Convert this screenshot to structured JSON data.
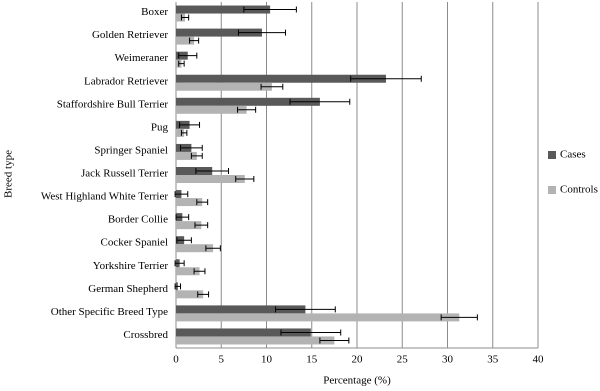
{
  "chart_data": {
    "type": "hbar",
    "x_label": "Percentage (%)",
    "y_label": "Breed type",
    "categories": [
      "Boxer",
      "Golden Retriever",
      "Weimeraner",
      "Labrador Retriever",
      "Staffordshire Bull Terrier",
      "Pug",
      "Springer Spaniel",
      "Jack Russell Terrier",
      "West Highland White Terrier",
      "Border Collie",
      "Cocker Spaniel",
      "Yorkshire Terrier",
      "German Shepherd",
      "Other Specific Breed Type",
      "Crossbred"
    ],
    "series": [
      {
        "name": "Cases",
        "color": "#595959",
        "values": [
          10.4,
          9.5,
          1.3,
          23.2,
          15.9,
          1.5,
          1.7,
          4.0,
          0.6,
          0.7,
          0.9,
          0.4,
          0.2,
          14.3,
          14.9
        ],
        "errors": [
          2.9,
          2.6,
          1.0,
          3.9,
          3.3,
          1.1,
          1.2,
          1.8,
          0.7,
          0.7,
          0.8,
          0.5,
          0.3,
          3.3,
          3.3
        ]
      },
      {
        "name": "Controls",
        "color": "#b3b3b3",
        "values": [
          1.0,
          2.0,
          0.6,
          10.6,
          7.8,
          0.9,
          2.3,
          7.6,
          2.9,
          2.8,
          4.1,
          2.6,
          3.0,
          31.3,
          17.5
        ],
        "errors": [
          0.4,
          0.5,
          0.3,
          1.2,
          1.0,
          0.3,
          0.6,
          1.0,
          0.6,
          0.7,
          0.8,
          0.6,
          0.6,
          2.0,
          1.6
        ]
      }
    ],
    "xlim": [
      0,
      40
    ],
    "xticks": [
      0,
      5,
      10,
      15,
      20,
      25,
      30,
      35,
      40
    ],
    "grid": true,
    "legend": "right"
  }
}
